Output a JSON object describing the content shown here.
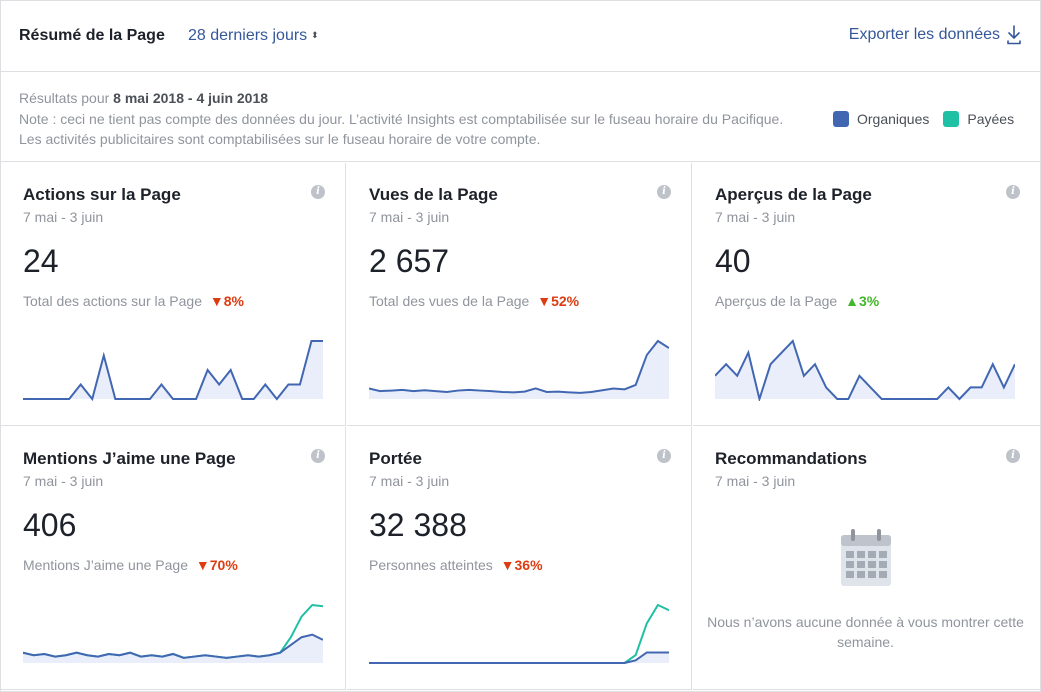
{
  "header": {
    "title": "Résumé de la Page",
    "range": "28 derniers jours",
    "export_label": "Exporter les données"
  },
  "info": {
    "results_prefix": "Résultats pour",
    "results_dates": "8 mai 2018 - 4 juin 2018",
    "note": "Note : ceci ne tient pas compte des données du jour. L’activité Insights est comptabilisée sur le fuseau horaire du Pacifique. Les activités publicitaires sont comptabilisées sur le fuseau horaire de votre compte."
  },
  "legend": {
    "organic": "Organiques",
    "paid": "Payées"
  },
  "colors": {
    "organic": "#4267b2",
    "paid": "#20c0a4",
    "fill": "#e9eefa"
  },
  "cards": [
    {
      "title": "Actions sur la Page",
      "date": "7 mai - 3 juin",
      "value": "24",
      "sub_label": "Total des actions sur la Page",
      "delta": "8%",
      "trend": "down",
      "organic": [
        0,
        0,
        0,
        0,
        0,
        1,
        0,
        3,
        0,
        0,
        0,
        0,
        1,
        0,
        0,
        0,
        2,
        1,
        2,
        0,
        0,
        1,
        0,
        1,
        1,
        4,
        4
      ],
      "paid": null
    },
    {
      "title": "Vues de la Page",
      "date": "7 mai - 3 juin",
      "value": "2 657",
      "sub_label": "Total des vues de la Page",
      "delta": "52%",
      "trend": "down",
      "organic": [
        60,
        45,
        48,
        52,
        45,
        50,
        45,
        40,
        48,
        52,
        48,
        45,
        40,
        38,
        42,
        60,
        40,
        42,
        38,
        35,
        40,
        50,
        60,
        55,
        80,
        250,
        330,
        290
      ],
      "paid": null
    },
    {
      "title": "Aperçus de la Page",
      "date": "7 mai - 3 juin",
      "value": "40",
      "sub_label": "Aperçus de la Page",
      "delta": "3%",
      "trend": "up",
      "organic": [
        2,
        3,
        2,
        4,
        0,
        3,
        4,
        5,
        2,
        3,
        1,
        0,
        0,
        2,
        1,
        0,
        0,
        0,
        0,
        0,
        0,
        1,
        0,
        1,
        1,
        3,
        1,
        3
      ],
      "paid": null
    },
    {
      "title": "Mentions J’aime une Page",
      "date": "7 mai - 3 juin",
      "value": "406",
      "sub_label": "Mentions J’aime une Page",
      "delta": "70%",
      "trend": "down",
      "organic": [
        8,
        6,
        7,
        5,
        6,
        8,
        6,
        5,
        7,
        6,
        8,
        5,
        6,
        5,
        7,
        4,
        5,
        6,
        5,
        4,
        5,
        6,
        5,
        6,
        8,
        14,
        20,
        22,
        18
      ],
      "paid": [
        8,
        6,
        7,
        5,
        6,
        8,
        6,
        5,
        7,
        6,
        8,
        5,
        6,
        5,
        7,
        4,
        5,
        6,
        5,
        4,
        5,
        6,
        5,
        6,
        8,
        20,
        36,
        45,
        44
      ]
    },
    {
      "title": "Portée",
      "date": "7 mai - 3 juin",
      "value": "32 388",
      "sub_label": "Personnes atteintes",
      "delta": "36%",
      "trend": "down",
      "organic": [
        0,
        0,
        0,
        0,
        0,
        0,
        0,
        0,
        0,
        0,
        0,
        0,
        0,
        0,
        0,
        0,
        0,
        0,
        0,
        0,
        0,
        0,
        0,
        0,
        1,
        4,
        4,
        4
      ],
      "paid": [
        0,
        0,
        0,
        0,
        0,
        0,
        0,
        0,
        0,
        0,
        0,
        0,
        0,
        0,
        0,
        0,
        0,
        0,
        0,
        0,
        0,
        0,
        0,
        0,
        3,
        15,
        22,
        20
      ]
    },
    {
      "title": "Recommandations",
      "date": "7 mai - 3 juin",
      "empty_text": "Nous n’avons aucune donnée à vous montrer cette semaine."
    }
  ]
}
